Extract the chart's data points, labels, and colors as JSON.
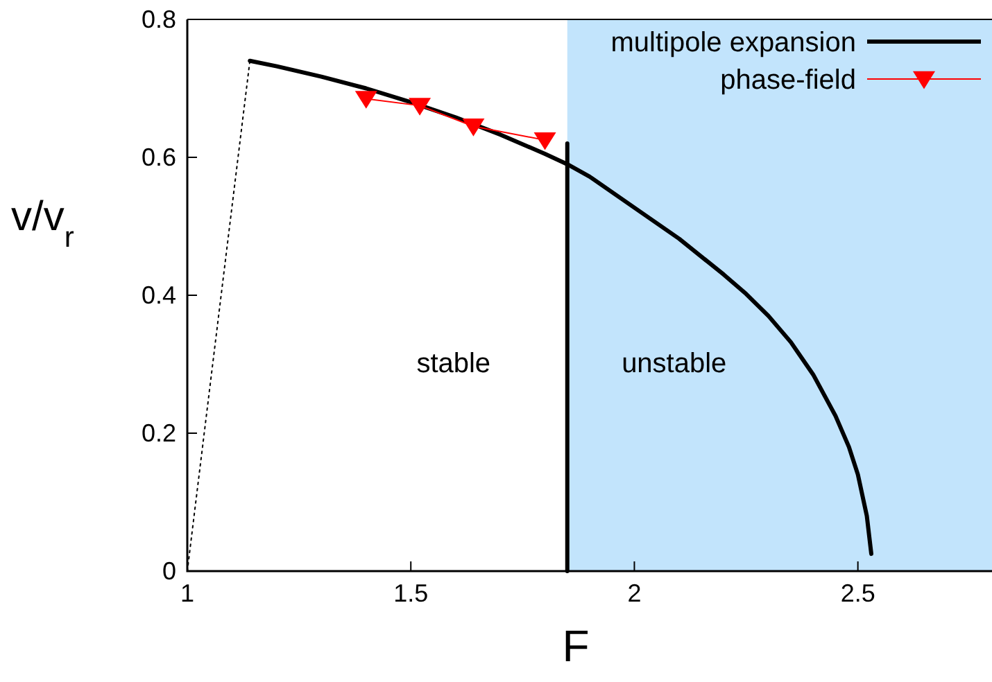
{
  "chart_data": {
    "type": "line",
    "xlabel": "F",
    "ylabel": "v/v$_{r}$",
    "xlim": [
      1,
      2.8
    ],
    "ylim": [
      0,
      0.8
    ],
    "xticks": [
      1,
      1.5,
      2,
      2.5
    ],
    "yticks": [
      0,
      0.2,
      0.4,
      0.6,
      0.8
    ],
    "grid": false,
    "legend": "top right",
    "bands": [
      {
        "axis": "x",
        "from": 1.85,
        "to": 2.8,
        "color": "#c2e4fc"
      }
    ],
    "annotations": [
      "stable",
      "unstable"
    ],
    "series": [
      {
        "name": "multipole expansion",
        "color": "#000000",
        "marker": "none",
        "line_style": "solid",
        "x": [
          1.14,
          1.2,
          1.3,
          1.4,
          1.5,
          1.6,
          1.7,
          1.8,
          1.85,
          1.9,
          2.0,
          2.1,
          2.2,
          2.25,
          2.3,
          2.35,
          2.4,
          2.45,
          2.48,
          2.5,
          2.52,
          2.53
        ],
        "values": [
          0.74,
          0.732,
          0.717,
          0.7,
          0.68,
          0.658,
          0.633,
          0.605,
          0.59,
          0.572,
          0.527,
          0.482,
          0.43,
          0.402,
          0.37,
          0.332,
          0.285,
          0.225,
          0.18,
          0.14,
          0.08,
          0.025
        ]
      },
      {
        "name": "phase-field",
        "color": "#ff0000",
        "marker": "triangle",
        "line_style": "solid",
        "x": [
          1.4,
          1.52,
          1.64,
          1.8
        ],
        "values": [
          0.685,
          0.675,
          0.645,
          0.625
        ]
      },
      {
        "color": "#000000",
        "marker": "none",
        "line_style": "dotted",
        "x": [
          1,
          1.14
        ],
        "values": [
          0,
          0.74
        ]
      },
      {
        "color": "#000000",
        "marker": "none",
        "line_style": "solid",
        "x": [
          1.85,
          1.85
        ],
        "values": [
          0,
          0.62
        ]
      }
    ]
  }
}
